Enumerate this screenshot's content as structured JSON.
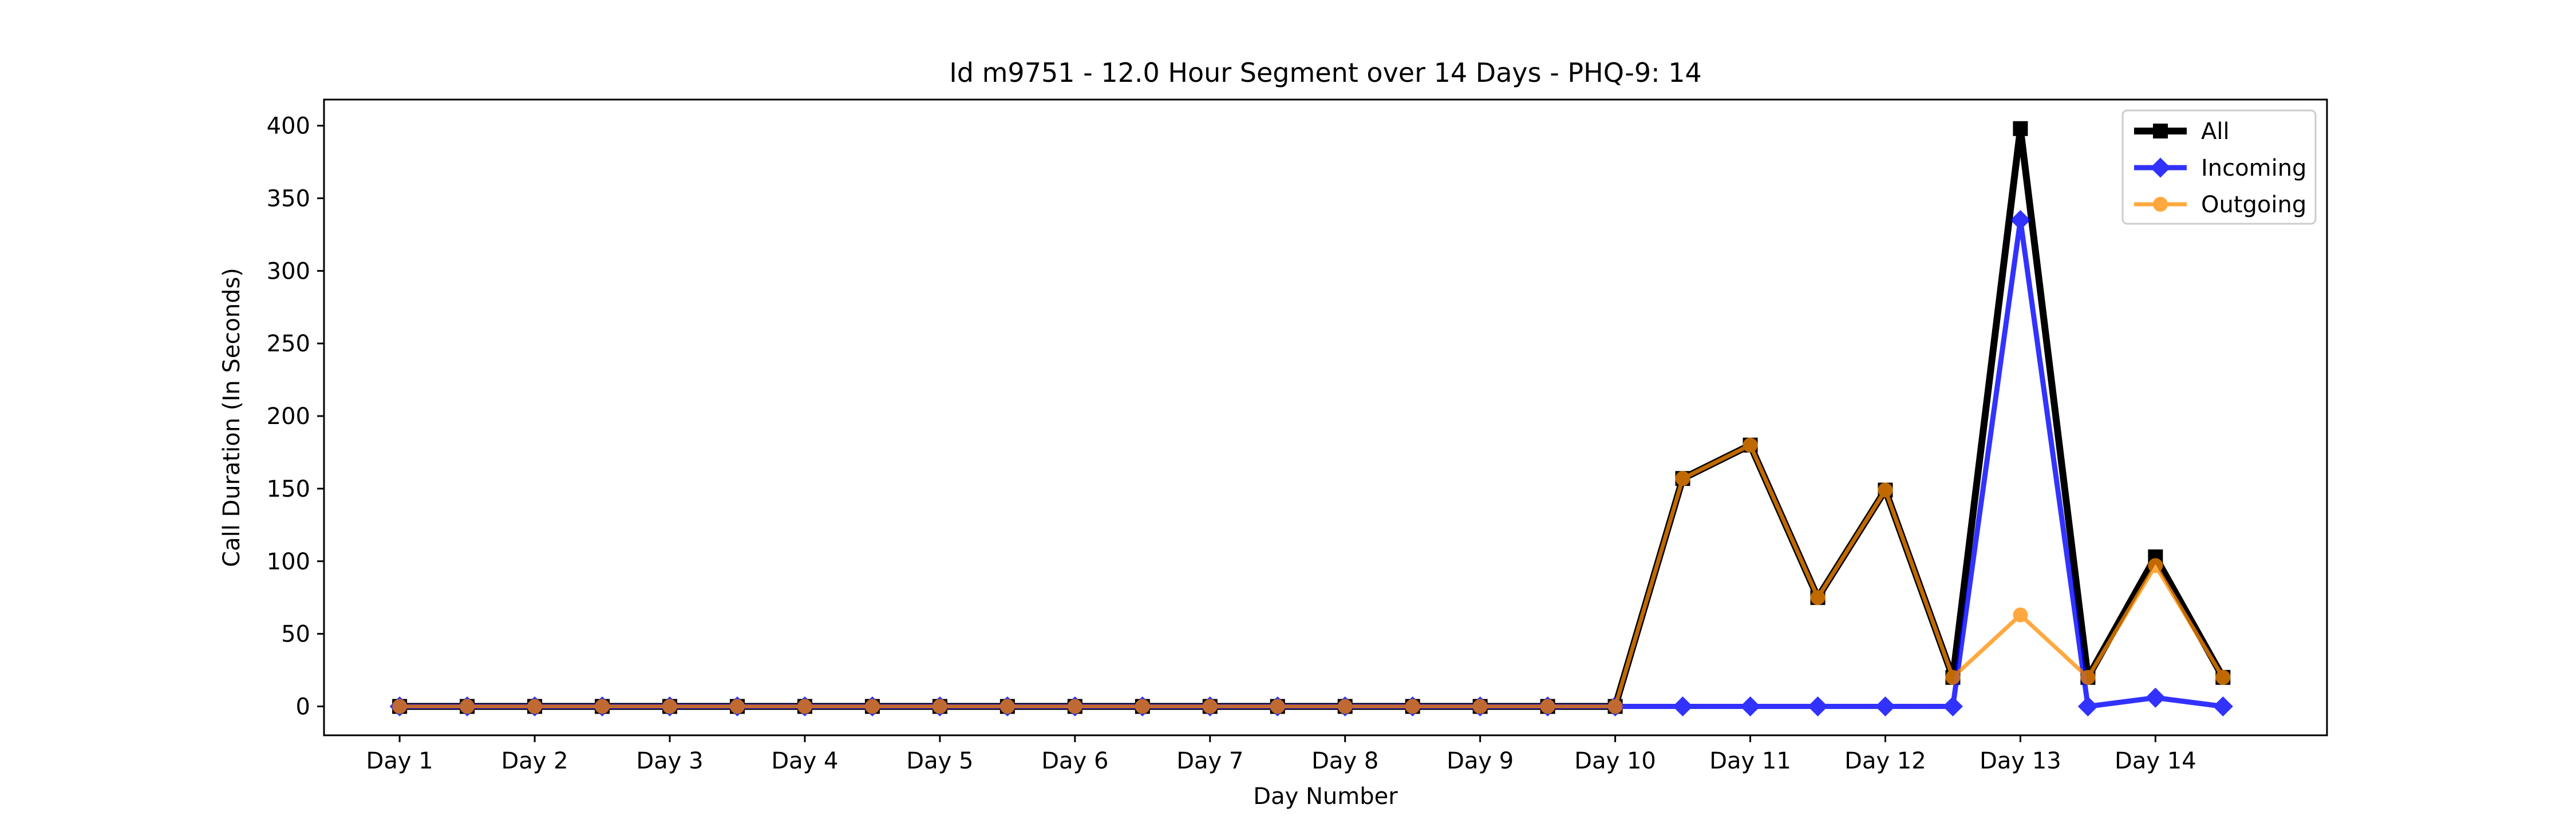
{
  "chart_data": {
    "type": "line",
    "title": "Id m9751 - 12.0 Hour Segment over 14 Days - PHQ-9: 14",
    "xlabel": "Day Number",
    "ylabel": "Call Duration (In Seconds)",
    "x": [
      1,
      1.5,
      2,
      2.5,
      3,
      3.5,
      4,
      4.5,
      5,
      5.5,
      6,
      6.5,
      7,
      7.5,
      8,
      8.5,
      9,
      9.5,
      10,
      10.5,
      11,
      11.5,
      12,
      12.5,
      13,
      13.5,
      14,
      14.5
    ],
    "xticks": [
      1,
      2,
      3,
      4,
      5,
      6,
      7,
      8,
      9,
      10,
      11,
      12,
      13,
      14
    ],
    "xtick_labels": [
      "Day 1",
      "Day 2",
      "Day 3",
      "Day 4",
      "Day 5",
      "Day 6",
      "Day 7",
      "Day 8",
      "Day 9",
      "Day 10",
      "Day 11",
      "Day 12",
      "Day 13",
      "Day 14"
    ],
    "xlim": [
      0.44,
      15.27
    ],
    "ylim": [
      -19.9,
      418
    ],
    "yticks": [
      0,
      50,
      100,
      150,
      200,
      250,
      300,
      350,
      400
    ],
    "grid": false,
    "legend_position": "upper right",
    "series": [
      {
        "name": "All",
        "color": "#000000",
        "marker": "square",
        "values": [
          0,
          0,
          0,
          0,
          0,
          0,
          0,
          0,
          0,
          0,
          0,
          0,
          0,
          0,
          0,
          0,
          0,
          0,
          0,
          157,
          180,
          75,
          149,
          20,
          398,
          20,
          103,
          20
        ]
      },
      {
        "name": "Incoming",
        "color": "#0000ff",
        "marker": "diamond",
        "values": [
          0,
          0,
          0,
          0,
          0,
          0,
          0,
          0,
          0,
          0,
          0,
          0,
          0,
          0,
          0,
          0,
          0,
          0,
          0,
          0,
          0,
          0,
          0,
          0,
          335,
          0,
          6,
          0
        ]
      },
      {
        "name": "Outgoing",
        "color": "#ff8c00",
        "marker": "circle",
        "values": [
          0,
          0,
          0,
          0,
          0,
          0,
          0,
          0,
          0,
          0,
          0,
          0,
          0,
          0,
          0,
          0,
          0,
          0,
          0,
          157,
          180,
          75,
          149,
          20,
          63,
          20,
          97,
          20
        ]
      }
    ]
  }
}
